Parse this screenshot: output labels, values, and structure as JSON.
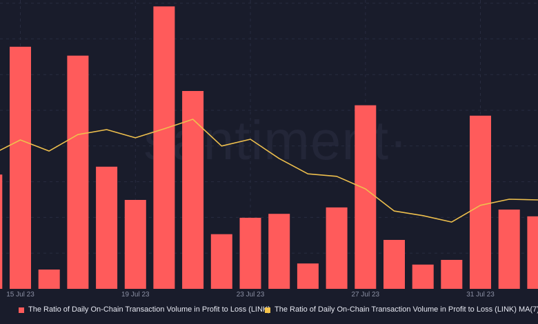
{
  "watermark": "santiment·",
  "colors": {
    "background": "#191c2b",
    "bar": "#ff5b5b",
    "ma_line": "#efc04d",
    "grid": "#282c40",
    "tick_label": "#8b90a4",
    "legend_text": "#e7e9f2",
    "watermark": "#232638"
  },
  "legend": [
    {
      "label": "The Ratio of Daily On-Chain Transaction Volume in Profit to Loss (LINK)",
      "color": "#ff5b5b"
    },
    {
      "label": "The Ratio of Daily On-Chain Transaction Volume in Profit to Loss (LINK) MA(7)",
      "color": "#f5c34b"
    }
  ],
  "chart_data": {
    "type": "bar",
    "title": "",
    "xlabel": "",
    "ylabel": "",
    "grid": true,
    "legend_position": "bottom",
    "ylim": [
      0,
      8.1
    ],
    "categories": [
      "14 Jul 23",
      "15 Jul 23",
      "16 Jul 23",
      "17 Jul 23",
      "18 Jul 23",
      "19 Jul 23",
      "20 Jul 23",
      "21 Jul 23",
      "22 Jul 23",
      "23 Jul 23",
      "24 Jul 23",
      "25 Jul 23",
      "26 Jul 23",
      "27 Jul 23",
      "28 Jul 23",
      "29 Jul 23",
      "30 Jul 23",
      "31 Jul 23",
      "1 Aug 23",
      "2 Aug 23"
    ],
    "x_tick_indices": [
      1,
      5,
      9,
      13,
      17
    ],
    "x_tick_labels": [
      "15 Jul 23",
      "19 Jul 23",
      "23 Jul 23",
      "27 Jul 23",
      "31 Jul 23"
    ],
    "series": [
      {
        "name": "The Ratio of Daily On-Chain Transaction Volume in Profit to Loss (LINK)",
        "type": "bar",
        "color": "#ff5b5b",
        "values": [
          3.2,
          6.78,
          0.54,
          6.53,
          3.42,
          2.49,
          7.91,
          5.54,
          1.53,
          1.99,
          2.1,
          0.71,
          2.28,
          5.14,
          1.37,
          0.68,
          0.81,
          4.85,
          2.22,
          2.03
        ]
      },
      {
        "name": "The Ratio of Daily On-Chain Transaction Volume in Profit to Loss (LINK) MA(7)",
        "type": "line",
        "color": "#efc04d",
        "values": [
          3.76,
          4.17,
          3.86,
          4.32,
          4.46,
          4.23,
          4.48,
          4.75,
          4.0,
          4.19,
          3.65,
          3.22,
          3.15,
          2.8,
          2.18,
          2.05,
          1.87,
          2.34,
          2.51,
          2.49
        ]
      }
    ]
  }
}
